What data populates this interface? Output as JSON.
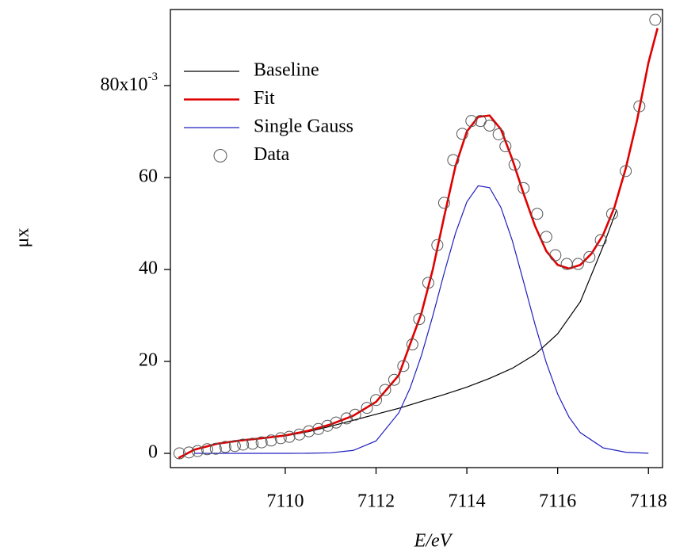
{
  "chart_data": {
    "type": "line",
    "xlabel": "E/eV",
    "ylabel": "μx",
    "xlim": [
      7107.47,
      7118.31
    ],
    "ylim": [
      -3.1,
      96.55
    ],
    "xticks": [
      7110,
      7112,
      7114,
      7116,
      7118
    ],
    "yticks": [
      0,
      20,
      40,
      60,
      {
        "value": 80,
        "label": "80x10",
        "exponent": "-3"
      }
    ],
    "legend": "upper-left",
    "series": [
      {
        "name": "Baseline",
        "color": "#000000",
        "mode": "lines",
        "x": [
          7107.65,
          7108,
          7108.5,
          7109,
          7109.5,
          7110,
          7110.5,
          7111,
          7111.5,
          7112,
          7112.5,
          7113,
          7113.5,
          7114,
          7114.5,
          7115,
          7115.5,
          7116,
          7116.5,
          7117,
          7117.3
        ],
        "values": [
          -1.0,
          0.8,
          2.0,
          2.7,
          3.2,
          3.8,
          4.7,
          5.9,
          7.2,
          8.5,
          9.8,
          11.3,
          12.8,
          14.4,
          16.3,
          18.5,
          21.5,
          26.0,
          33.0,
          45.0,
          53.0
        ]
      },
      {
        "name": "Fit",
        "color": "#e00000",
        "mode": "lines",
        "x": [
          7107.65,
          7108,
          7108.5,
          7109,
          7109.5,
          7110,
          7110.5,
          7111,
          7111.5,
          7112,
          7112.5,
          7113,
          7113.25,
          7113.5,
          7113.75,
          7114,
          7114.25,
          7114.5,
          7114.75,
          7115,
          7115.25,
          7115.5,
          7115.75,
          7116,
          7116.25,
          7116.5,
          7116.75,
          7117,
          7117.25,
          7117.5,
          7117.75,
          7118,
          7118.2
        ],
        "values": [
          -1.0,
          0.8,
          2.1,
          2.8,
          3.3,
          3.9,
          4.9,
          6.3,
          8.2,
          11.2,
          17.0,
          30.5,
          40.0,
          51.5,
          62.5,
          70.0,
          73.2,
          73.5,
          70.5,
          64.0,
          56.5,
          49.5,
          44.0,
          41.0,
          40.2,
          41.0,
          43.5,
          47.5,
          53.5,
          62.0,
          72.5,
          85.0,
          92.5
        ]
      },
      {
        "name": "Single Gauss",
        "color": "#1f1fbf",
        "mode": "lines",
        "x": [
          7108,
          7109,
          7110,
          7110.5,
          7111,
          7111.5,
          7112,
          7112.5,
          7112.75,
          7113,
          7113.25,
          7113.5,
          7113.75,
          7114,
          7114.25,
          7114.5,
          7114.75,
          7115,
          7115.25,
          7115.5,
          7115.75,
          7116,
          7116.25,
          7116.5,
          7117,
          7117.5,
          7118
        ],
        "values": [
          0,
          0,
          0,
          0.02,
          0.12,
          0.65,
          2.7,
          8.8,
          14.2,
          21.3,
          29.9,
          39.2,
          47.9,
          54.7,
          58.2,
          57.8,
          53.5,
          46.3,
          37.3,
          28.1,
          19.7,
          12.9,
          7.9,
          4.5,
          1.2,
          0.24,
          0.03
        ]
      },
      {
        "name": "Data",
        "color": "#555555",
        "mode": "markers",
        "x": [
          7107.67,
          7107.88,
          7108.07,
          7108.28,
          7108.47,
          7108.68,
          7108.89,
          7109.07,
          7109.28,
          7109.48,
          7109.69,
          7109.9,
          7110.09,
          7110.31,
          7110.52,
          7110.73,
          7110.93,
          7111.12,
          7111.35,
          7111.54,
          7111.8,
          7112.0,
          7112.2,
          7112.4,
          7112.6,
          7112.8,
          7112.95,
          7113.15,
          7113.35,
          7113.5,
          7113.7,
          7113.9,
          7114.1,
          7114.3,
          7114.5,
          7114.7,
          7114.85,
          7115.05,
          7115.25,
          7115.55,
          7115.75,
          7115.95,
          7116.2,
          7116.45,
          7116.7,
          7116.95,
          7117.2,
          7117.5,
          7117.8,
          7118.15
        ],
        "values": [
          0,
          0.2,
          0.5,
          0.9,
          1.0,
          1.4,
          1.6,
          1.9,
          2.1,
          2.4,
          2.8,
          3.3,
          3.6,
          4.1,
          4.8,
          5.3,
          6.0,
          6.7,
          7.6,
          8.4,
          9.9,
          11.6,
          13.8,
          16.0,
          19.0,
          23.7,
          29.2,
          37.1,
          45.3,
          54.5,
          63.8,
          69.5,
          72.3,
          72.3,
          71.3,
          69.4,
          66.8,
          62.8,
          57.7,
          52.1,
          47.1,
          43.1,
          41.2,
          41.2,
          42.7,
          46.4,
          52.1,
          61.4,
          75.5,
          94.3
        ]
      }
    ]
  }
}
